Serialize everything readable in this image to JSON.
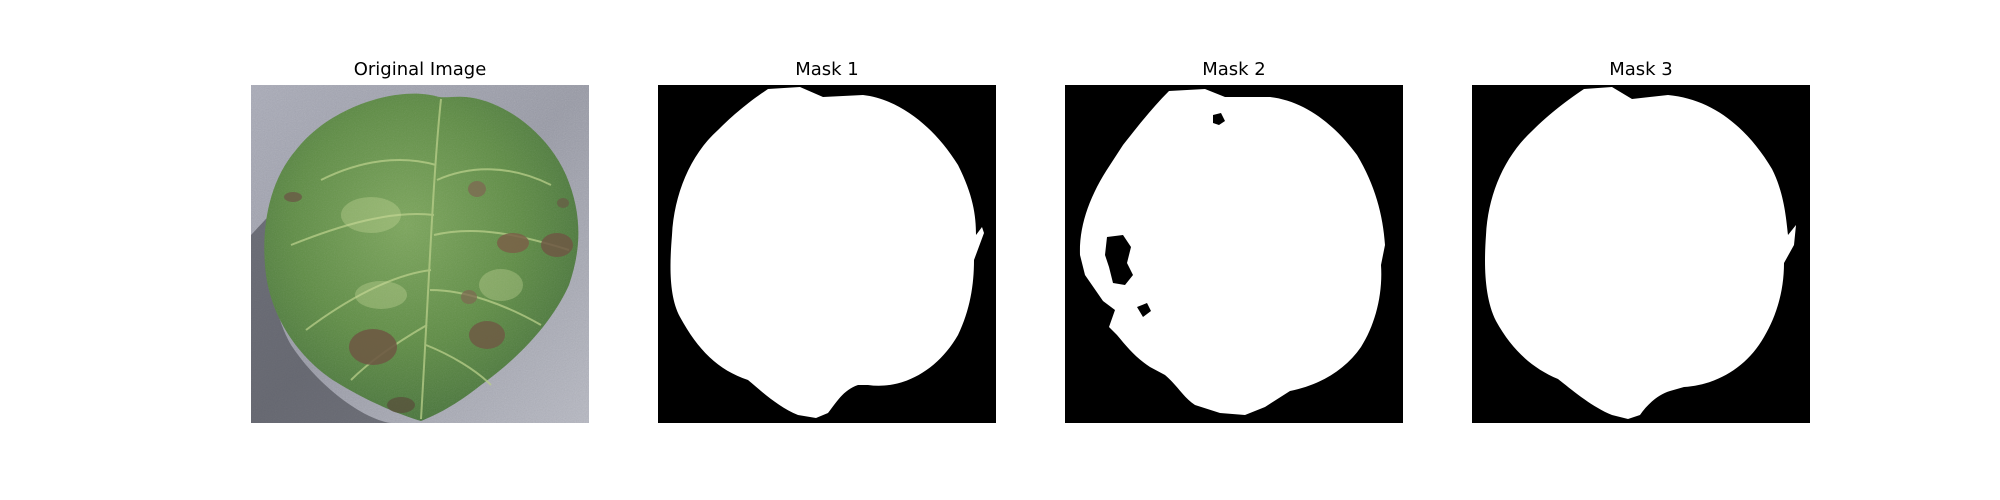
{
  "figure": {
    "panels": [
      {
        "title": "Original Image",
        "kind": "photo",
        "subject": "leaf-photo"
      },
      {
        "title": "Mask 1",
        "kind": "mask",
        "subject": "leaf-mask"
      },
      {
        "title": "Mask 2",
        "kind": "mask",
        "subject": "leaf-mask"
      },
      {
        "title": "Mask 3",
        "kind": "mask",
        "subject": "leaf-mask"
      }
    ]
  },
  "colors": {
    "mask_background": "#000000",
    "mask_foreground": "#ffffff",
    "photo_background": "#9ea0ab",
    "leaf_green": "#5d8a44",
    "lesion_brown": "#6f5a44"
  }
}
